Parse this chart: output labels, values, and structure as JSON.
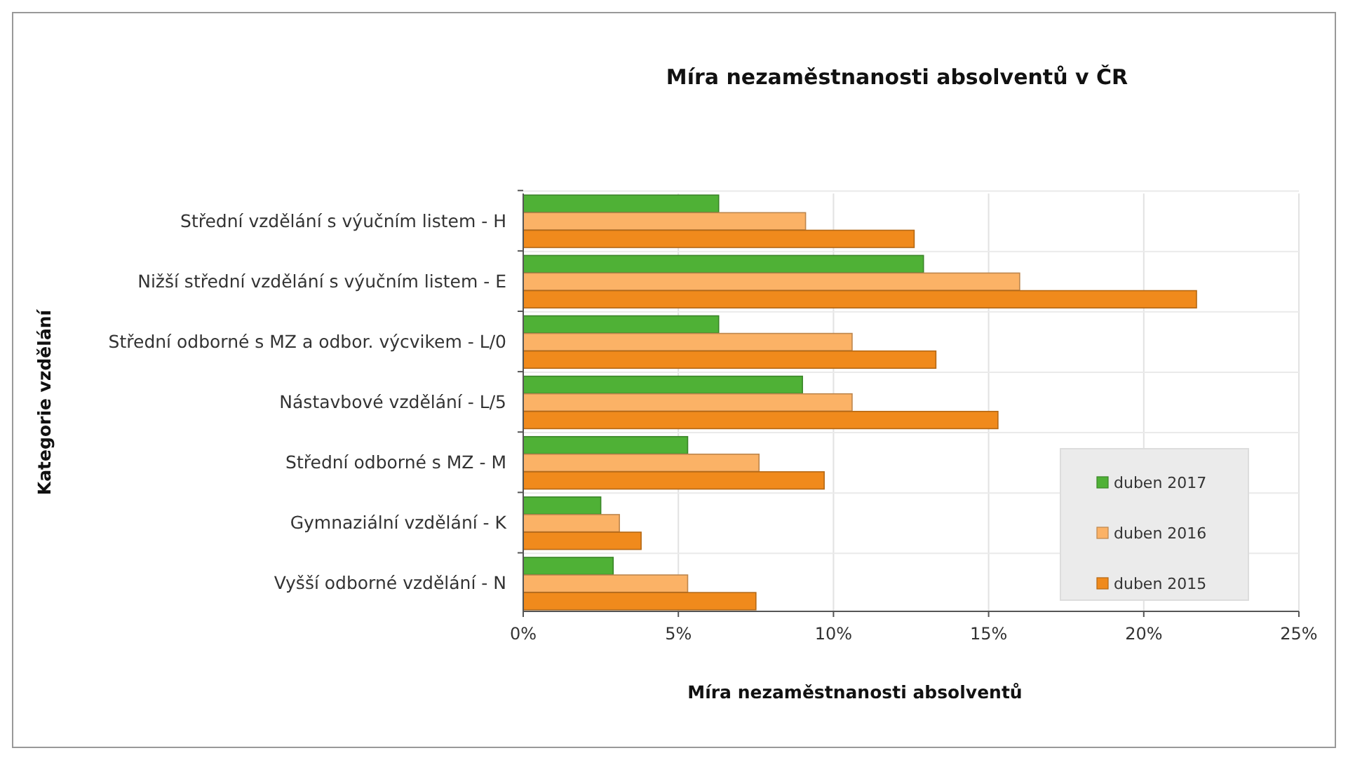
{
  "chart_data": {
    "type": "bar",
    "orientation": "horizontal",
    "title": "Míra nezaměstnanosti absolventů v ČR",
    "xlabel": "Míra nezaměstnanosti absolventů",
    "ylabel": "Kategorie vzdělání",
    "categories": [
      "Střední vzdělání s výučním listem - H",
      "Nižší střední vzdělání s výučním listem - E",
      "Střední odborné s MZ a odbor. výcvikem - L/0",
      "Nástavbové vzdělání - L/5",
      "Střední odborné s MZ - M",
      "Gymnaziální vzdělání - K",
      "Vyšší odborné vzdělání - N"
    ],
    "series": [
      {
        "name": "duben 2017",
        "color": "#4fb136",
        "values": [
          6.3,
          12.9,
          6.3,
          9.0,
          5.3,
          2.5,
          2.9
        ]
      },
      {
        "name": "duben 2016",
        "color": "#fbb266",
        "values": [
          9.1,
          16.0,
          10.6,
          10.6,
          7.6,
          3.1,
          5.3
        ]
      },
      {
        "name": "duben 2015",
        "color": "#f08a1c",
        "values": [
          12.6,
          21.7,
          13.3,
          15.3,
          9.7,
          3.8,
          7.5
        ]
      }
    ],
    "xlim": [
      0,
      25
    ],
    "xticks": [
      {
        "value": 0,
        "label": "0%"
      },
      {
        "value": 5,
        "label": "5%"
      },
      {
        "value": 10,
        "label": "10%"
      },
      {
        "value": 15,
        "label": "15%"
      },
      {
        "value": 20,
        "label": "20%"
      },
      {
        "value": 25,
        "label": "25%"
      }
    ],
    "grid": true,
    "legend": "bottom right"
  }
}
